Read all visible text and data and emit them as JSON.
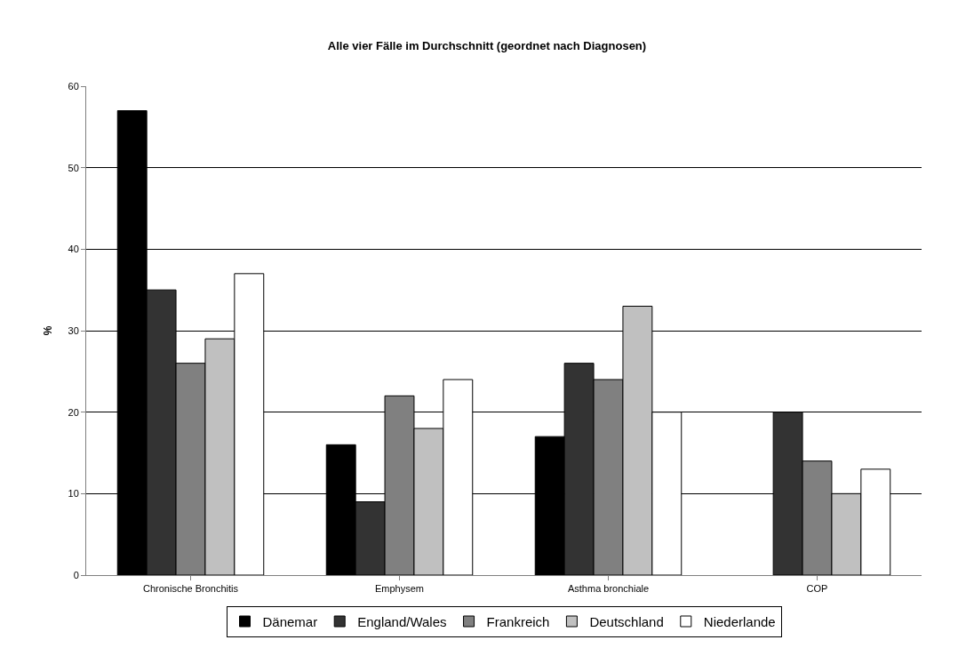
{
  "chart_data": {
    "type": "bar",
    "title": "Alle vier Fälle im Durchschnitt (geordnet nach Diagnosen)",
    "ylabel": "%",
    "categories": [
      "Chronische Bronchitis",
      "Emphysem",
      "Asthma bronchiale",
      "COP"
    ],
    "series": [
      {
        "name": "Dänemar",
        "color": "#000000",
        "values": [
          57,
          16,
          17,
          null
        ]
      },
      {
        "name": "England/Wales",
        "color": "#333333",
        "values": [
          35,
          9,
          26,
          20
        ]
      },
      {
        "name": "Frankreich",
        "color": "#808080",
        "values": [
          26,
          22,
          24,
          14
        ]
      },
      {
        "name": "Deutschland",
        "color": "#c0c0c0",
        "values": [
          29,
          18,
          33,
          10
        ]
      },
      {
        "name": "Niederlande",
        "color": "#ffffff",
        "values": [
          37,
          24,
          20,
          13
        ]
      }
    ],
    "ylim": [
      0,
      60
    ],
    "yticks": [
      0,
      10,
      20,
      30,
      40,
      50,
      60
    ],
    "grid": "y",
    "legend": "bottom"
  }
}
